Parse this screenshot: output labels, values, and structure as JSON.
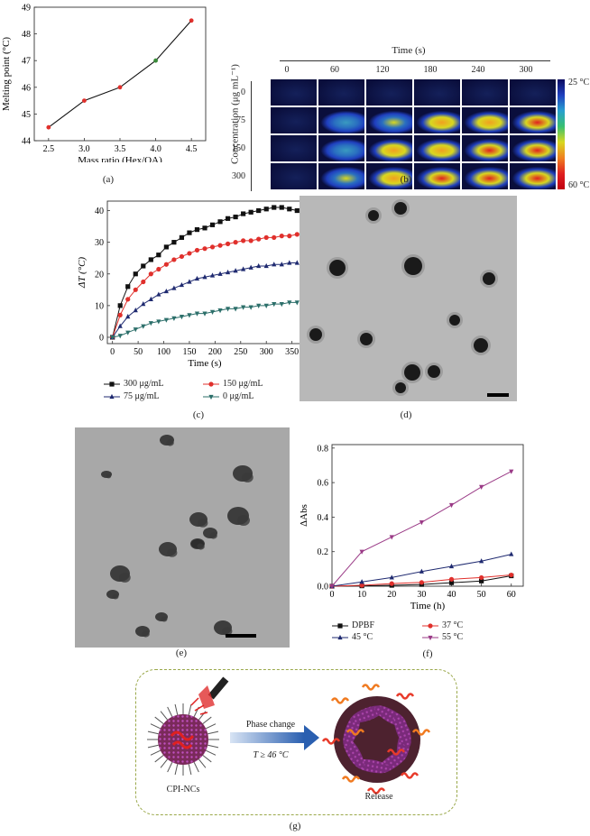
{
  "colors": {
    "black": "#111111",
    "red": "#e0302c",
    "blue": "#2a3a8c",
    "teal": "#2c6f6a",
    "purple": "#9a3a86",
    "green": "#3a8a3a",
    "navy": "#1f2a70"
  },
  "panel_a": {
    "caption": "(a)",
    "chart_data": {
      "type": "line",
      "x": [
        2.5,
        3.0,
        3.5,
        4.0,
        4.5
      ],
      "y": [
        44.5,
        45.5,
        46.0,
        47.0,
        48.5
      ],
      "xlabel": "Mass ratio (Hex/OA)",
      "ylabel": "Melting point (°C)",
      "xlim": [
        2.3,
        4.7
      ],
      "ylim": [
        44,
        49
      ],
      "xticks": [
        "2.5",
        "3.0",
        "3.5",
        "4.0",
        "4.5"
      ],
      "yticks": [
        "44",
        "45",
        "46",
        "47",
        "48",
        "49"
      ]
    }
  },
  "panel_b": {
    "caption": "(b)",
    "time_title": "Time (s)",
    "times": [
      "0",
      "60",
      "120",
      "180",
      "240",
      "300"
    ],
    "ylabel": "Concentration (μg mL⁻¹)",
    "concentrations": [
      "0",
      "75",
      "150",
      "300"
    ],
    "colorbar_top": "25 °C",
    "colorbar_bottom": "60 °C"
  },
  "panel_c": {
    "caption": "(c)",
    "chart_data": {
      "type": "line",
      "xlabel": "Time (s)",
      "ylabel": "ΔT (°C)",
      "xlim": [
        -10,
        370
      ],
      "ylim": [
        -2,
        43
      ],
      "xticks": [
        "0",
        "50",
        "100",
        "150",
        "200",
        "250",
        "300",
        "350"
      ],
      "yticks": [
        "0",
        "10",
        "20",
        "30",
        "40"
      ],
      "x": [
        0,
        15,
        30,
        45,
        60,
        75,
        90,
        105,
        120,
        135,
        150,
        165,
        180,
        195,
        210,
        225,
        240,
        255,
        270,
        285,
        300,
        315,
        330,
        345,
        360
      ],
      "series": [
        {
          "name": "300 μg/mL",
          "values": [
            0,
            10,
            16,
            20,
            22.5,
            24.5,
            26,
            28.5,
            30,
            31.5,
            33,
            34,
            34.5,
            35.5,
            36.5,
            37.5,
            38,
            39,
            39.5,
            40,
            40.5,
            41,
            41,
            40.5,
            40
          ]
        },
        {
          "name": "150 μg/mL",
          "values": [
            0,
            7,
            12,
            15,
            17.5,
            20,
            21.5,
            23,
            24.5,
            25.5,
            26.5,
            27.5,
            28,
            28.5,
            29,
            29.5,
            30,
            30.5,
            30.5,
            31,
            31.5,
            31.5,
            32,
            32,
            32.5
          ]
        },
        {
          "name": "75 μg/mL",
          "values": [
            0,
            3.5,
            6.5,
            8.5,
            10.5,
            12,
            13.5,
            14.5,
            15.5,
            16.5,
            17.5,
            18.5,
            19,
            19.5,
            20,
            20.5,
            21,
            21.5,
            22,
            22.5,
            22.5,
            23,
            23,
            23.5,
            23.5
          ]
        },
        {
          "name": "0 μg/mL",
          "values": [
            0,
            0.5,
            1.5,
            2.5,
            3.5,
            4.5,
            5,
            5.5,
            6,
            6.5,
            7,
            7.5,
            7.5,
            8,
            8.5,
            9,
            9,
            9.5,
            9.5,
            10,
            10,
            10.5,
            10.5,
            11,
            11
          ]
        }
      ]
    }
  },
  "panel_d": {
    "caption": "(d)"
  },
  "panel_e": {
    "caption": "(e)"
  },
  "panel_f": {
    "caption": "(f)",
    "chart_data": {
      "type": "line",
      "xlabel": "Time (h)",
      "ylabel": "ΔAbs",
      "xlim": [
        0,
        64
      ],
      "ylim": [
        0,
        0.82
      ],
      "xticks": [
        "0",
        "10",
        "20",
        "30",
        "40",
        "50",
        "60"
      ],
      "yticks": [
        "0.0",
        "0.2",
        "0.4",
        "0.6",
        "0.8"
      ],
      "x": [
        0,
        10,
        20,
        30,
        40,
        50,
        60
      ],
      "series": [
        {
          "name": "DPBF",
          "values": [
            0,
            0.002,
            0.005,
            0.01,
            0.02,
            0.03,
            0.06
          ]
        },
        {
          "name": "37 °C",
          "values": [
            0,
            0.005,
            0.015,
            0.022,
            0.04,
            0.05,
            0.065
          ]
        },
        {
          "name": "45 °C",
          "values": [
            0,
            0.025,
            0.05,
            0.085,
            0.115,
            0.145,
            0.185
          ]
        },
        {
          "name": "55 °C",
          "values": [
            0,
            0.2,
            0.285,
            0.37,
            0.47,
            0.575,
            0.665
          ]
        }
      ]
    }
  },
  "panel_g": {
    "caption": "(g)",
    "left_label": "CPI-NCs",
    "arrow_top": "Phase change",
    "arrow_bottom": "T ≥ 46 °C",
    "right_label": "Release"
  }
}
